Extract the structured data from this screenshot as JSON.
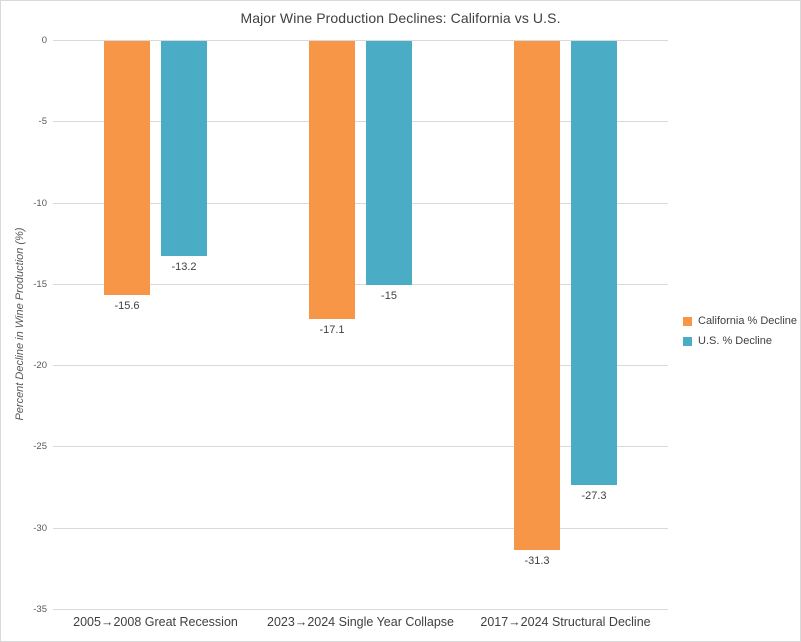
{
  "chart_data": {
    "type": "bar",
    "title": "Major Wine Production Declines: California vs U.S.",
    "ylabel": "Percent Decline in Wine Production (%)",
    "xlabel": "",
    "categories": [
      "2005→2008 Great Recession",
      "2023→2024 Single Year Collapse",
      "2017→2024 Structural Decline"
    ],
    "series": [
      {
        "name": "California % Decline",
        "color": "#F79646",
        "values": [
          -15.6,
          -17.1,
          -31.3
        ],
        "labels": [
          "-15.6",
          "-17.1",
          "-31.3"
        ]
      },
      {
        "name": "U.S. % Decline",
        "color": "#4BACC6",
        "values": [
          -13.2,
          -15,
          -27.3
        ],
        "labels": [
          "-13.2",
          "-15",
          "-27.3"
        ]
      }
    ],
    "ylim": [
      -35,
      0
    ],
    "yticks": [
      0,
      -5,
      -10,
      -15,
      -20,
      -25,
      -30,
      -35
    ],
    "ytick_labels": [
      "0",
      "-5",
      "-10",
      "-15",
      "-20",
      "-25",
      "-30",
      "-35"
    ],
    "grid": true,
    "legend_position": "right"
  },
  "colors": {
    "grid": "#d9d9d9",
    "frame_border": "#d9d9d9",
    "title_text": "#404040",
    "tick_text": "#595959",
    "label_text": "#404040",
    "background": "#ffffff"
  }
}
